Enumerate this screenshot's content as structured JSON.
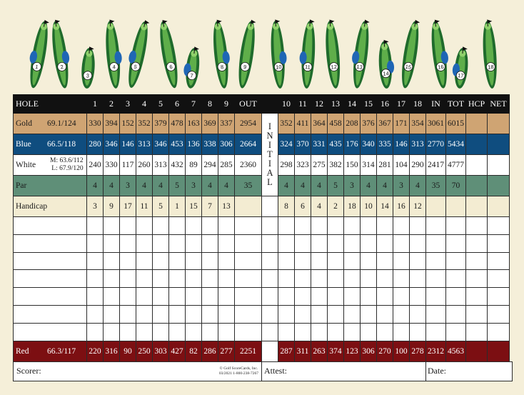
{
  "holes": [
    "1",
    "2",
    "3",
    "4",
    "5",
    "6",
    "7",
    "8",
    "9",
    "10",
    "11",
    "12",
    "13",
    "14",
    "15",
    "16",
    "17",
    "18"
  ],
  "header": {
    "hole": "HOLE",
    "front": [
      "1",
      "2",
      "3",
      "4",
      "5",
      "6",
      "7",
      "8",
      "9"
    ],
    "out": "OUT",
    "back": [
      "10",
      "11",
      "12",
      "13",
      "14",
      "15",
      "16",
      "17",
      "18"
    ],
    "in": "IN",
    "tot": "TOT",
    "hcp": "HCP",
    "net": "NET"
  },
  "initial_letters": [
    "I",
    "N",
    "I",
    "T",
    "I",
    "A",
    "L"
  ],
  "tees": {
    "gold": {
      "name": "Gold",
      "rating": "69.1/124",
      "front": [
        "330",
        "394",
        "152",
        "352",
        "379",
        "478",
        "163",
        "369",
        "337"
      ],
      "out": "2954",
      "back": [
        "352",
        "411",
        "364",
        "458",
        "208",
        "376",
        "367",
        "171",
        "354"
      ],
      "in": "3061",
      "tot": "6015"
    },
    "blue": {
      "name": "Blue",
      "rating": "66.5/118",
      "front": [
        "280",
        "346",
        "146",
        "313",
        "346",
        "453",
        "136",
        "338",
        "306"
      ],
      "out": "2664",
      "back": [
        "324",
        "370",
        "331",
        "435",
        "176",
        "340",
        "335",
        "146",
        "313"
      ],
      "in": "2770",
      "tot": "5434"
    },
    "white": {
      "name": "White",
      "rating_m": "M: 63.6/112",
      "rating_l": "L: 67.9/120",
      "front": [
        "240",
        "330",
        "117",
        "260",
        "313",
        "432",
        "89",
        "294",
        "285"
      ],
      "out": "2360",
      "back": [
        "298",
        "323",
        "275",
        "382",
        "150",
        "314",
        "281",
        "104",
        "290"
      ],
      "in": "2417",
      "tot": "4777"
    },
    "red": {
      "name": "Red",
      "rating": "66.3/117",
      "front": [
        "220",
        "316",
        "90",
        "250",
        "303",
        "427",
        "82",
        "286",
        "277"
      ],
      "out": "2251",
      "back": [
        "287",
        "311",
        "263",
        "374",
        "123",
        "306",
        "270",
        "100",
        "278"
      ],
      "in": "2312",
      "tot": "4563"
    }
  },
  "par": {
    "name": "Par",
    "front": [
      "4",
      "4",
      "3",
      "4",
      "4",
      "5",
      "3",
      "4",
      "4"
    ],
    "out": "35",
    "back": [
      "4",
      "4",
      "4",
      "5",
      "3",
      "4",
      "4",
      "3",
      "4"
    ],
    "in": "35",
    "tot": "70"
  },
  "handicap": {
    "name": "Handicap",
    "front": [
      "3",
      "9",
      "17",
      "11",
      "5",
      "1",
      "15",
      "7",
      "13"
    ],
    "back": [
      "8",
      "6",
      "4",
      "2",
      "18",
      "10",
      "14",
      "16",
      "12"
    ]
  },
  "footer": {
    "scorer": "Scorer:",
    "attest": "Attest:",
    "date": "Date:",
    "copyright_1": "© Golf ScoreCards, Inc.",
    "copyright_2": "03/2021  1-800-238-7267"
  },
  "colors": {
    "gold": "#cfa473",
    "blue": "#0f4d7f",
    "par": "#5f8f78",
    "handicap": "#f3ecd2",
    "red": "#7c0f12",
    "header": "#111111",
    "fairway": "#2f8a3c",
    "water": "#1f66b5"
  }
}
